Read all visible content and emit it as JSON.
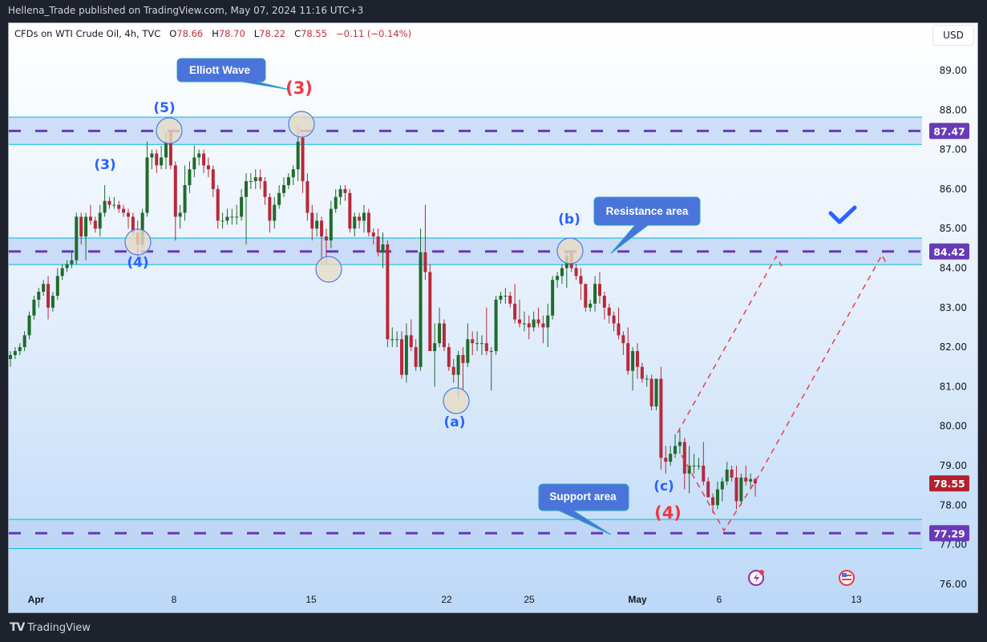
{
  "header": {
    "published": "Hellena_Trade published on TradingView.com, May 07, 2024 11:16 UTC+3"
  },
  "legend": {
    "symbol": "CFDs on WTI Crude Oil, 4h, TVC",
    "open_label": "O",
    "open": "78.66",
    "high_label": "H",
    "high": "78.70",
    "low_label": "L",
    "low": "78.22",
    "close_label": "C",
    "close": "78.55",
    "change": "−0.11 (−0.14%)"
  },
  "currency_button": "USD",
  "footer": {
    "logo_text": "TradingView"
  },
  "colors": {
    "up": "#1f6b2b",
    "down": "#b8283a",
    "level": "#673ab7",
    "last_price": "#b2222e",
    "zone_fill": "#bcd3f7",
    "zone_border": "#00bcd4",
    "projection": "#e8404f",
    "wave_blue": "#2962ff",
    "wave_red": "#f23645",
    "callout": "#4a74d9"
  },
  "chart_data": {
    "type": "candlestick",
    "interval": "4h",
    "ylim": [
      75.8,
      89.6
    ],
    "price_ticks": [
      "89.00",
      "88.00",
      "87.00",
      "86.00",
      "85.00",
      "84.00",
      "83.00",
      "82.00",
      "81.00",
      "80.00",
      "79.00",
      "78.00",
      "77.00",
      "76.00"
    ],
    "time_ticks": [
      "Apr",
      "8",
      "15",
      "22",
      "25",
      "May",
      "6",
      "13"
    ],
    "levels": [
      {
        "label": "87.47",
        "price": 87.47,
        "zone": [
          87.13,
          87.82
        ]
      },
      {
        "label": "84.42",
        "price": 84.42,
        "zone": [
          84.09,
          84.76
        ]
      },
      {
        "label": "77.29",
        "price": 77.29,
        "zone": [
          76.9,
          77.64
        ]
      }
    ],
    "last_price": {
      "label": "78.55",
      "price": 78.55
    },
    "wave_labels": [
      {
        "text": "(5)",
        "color": "blue"
      },
      {
        "text": "(3)",
        "color": "blue"
      },
      {
        "text": "(4)",
        "color": "blue"
      },
      {
        "text": "(3)",
        "color": "red"
      },
      {
        "text": "(a)",
        "color": "blue"
      },
      {
        "text": "(b)",
        "color": "blue"
      },
      {
        "text": "(c)",
        "color": "blue"
      },
      {
        "text": "(4)",
        "color": "red"
      }
    ],
    "callouts": [
      "Elliott Wave",
      "Resistance area",
      "Support area"
    ],
    "candles": [
      [
        81.7,
        81.9,
        81.5,
        81.8
      ],
      [
        81.8,
        82.0,
        81.7,
        81.9
      ],
      [
        81.9,
        82.1,
        81.8,
        82.0
      ],
      [
        82.0,
        82.4,
        81.9,
        82.3
      ],
      [
        82.3,
        82.9,
        82.2,
        82.8
      ],
      [
        82.8,
        83.3,
        82.7,
        83.2
      ],
      [
        83.2,
        83.5,
        83.0,
        83.4
      ],
      [
        83.4,
        83.7,
        83.3,
        83.6
      ],
      [
        83.6,
        83.8,
        82.7,
        83.0
      ],
      [
        83.0,
        83.4,
        82.9,
        83.3
      ],
      [
        83.3,
        84.0,
        83.2,
        83.8
      ],
      [
        83.8,
        84.1,
        83.7,
        84.0
      ],
      [
        84.0,
        84.2,
        83.9,
        84.1
      ],
      [
        84.1,
        84.4,
        84.0,
        84.2
      ],
      [
        84.2,
        85.4,
        84.1,
        85.3
      ],
      [
        85.3,
        85.4,
        84.6,
        84.8
      ],
      [
        84.8,
        85.4,
        84.2,
        85.3
      ],
      [
        85.3,
        85.6,
        85.1,
        85.2
      ],
      [
        85.2,
        85.3,
        84.9,
        85.0
      ],
      [
        85.0,
        85.6,
        84.8,
        85.4
      ],
      [
        85.4,
        86.1,
        85.3,
        85.7
      ],
      [
        85.7,
        85.8,
        85.5,
        85.6
      ],
      [
        85.6,
        85.8,
        85.5,
        85.6
      ],
      [
        85.6,
        85.7,
        85.4,
        85.5
      ],
      [
        85.5,
        85.6,
        85.3,
        85.4
      ],
      [
        85.4,
        85.5,
        85.0,
        85.3
      ],
      [
        85.3,
        85.4,
        84.8,
        84.9
      ],
      [
        84.9,
        85.2,
        84.3,
        84.6
      ],
      [
        84.6,
        85.5,
        84.5,
        85.4
      ],
      [
        85.4,
        87.2,
        85.3,
        86.8
      ],
      [
        86.8,
        87.0,
        86.5,
        86.9
      ],
      [
        86.9,
        87.0,
        86.4,
        86.6
      ],
      [
        86.6,
        87.1,
        86.5,
        86.8
      ],
      [
        86.8,
        87.45,
        86.5,
        87.2
      ],
      [
        87.45,
        87.47,
        86.5,
        86.6
      ],
      [
        86.6,
        86.7,
        84.7,
        85.3
      ],
      [
        85.3,
        85.6,
        85.0,
        85.4
      ],
      [
        85.4,
        86.6,
        85.2,
        86.1
      ],
      [
        86.1,
        86.7,
        85.9,
        86.5
      ],
      [
        86.5,
        87.1,
        86.3,
        86.8
      ],
      [
        86.8,
        87.0,
        86.6,
        86.9
      ],
      [
        86.9,
        87.0,
        86.4,
        86.6
      ],
      [
        86.6,
        86.8,
        86.3,
        86.5
      ],
      [
        86.5,
        86.6,
        85.8,
        86.0
      ],
      [
        86.0,
        86.1,
        85.0,
        85.2
      ],
      [
        85.2,
        85.4,
        85.0,
        85.2
      ],
      [
        85.2,
        85.5,
        85.1,
        85.3
      ],
      [
        85.3,
        85.5,
        85.1,
        85.3
      ],
      [
        85.3,
        85.6,
        85.1,
        85.3
      ],
      [
        85.3,
        86.0,
        85.2,
        85.8
      ],
      [
        85.8,
        86.4,
        84.6,
        86.2
      ],
      [
        86.2,
        86.4,
        86.0,
        86.2
      ],
      [
        86.2,
        86.5,
        86.0,
        86.3
      ],
      [
        86.3,
        86.5,
        86.0,
        86.2
      ],
      [
        86.2,
        86.3,
        85.6,
        85.8
      ],
      [
        85.8,
        85.9,
        84.9,
        85.2
      ],
      [
        85.2,
        85.8,
        85.0,
        85.6
      ],
      [
        85.6,
        86.1,
        85.5,
        85.9
      ],
      [
        85.9,
        86.3,
        85.8,
        86.1
      ],
      [
        86.1,
        86.4,
        86.0,
        86.3
      ],
      [
        86.3,
        86.6,
        86.1,
        86.5
      ],
      [
        86.5,
        87.6,
        86.2,
        87.2
      ],
      [
        87.3,
        87.4,
        85.9,
        86.2
      ],
      [
        86.2,
        86.4,
        85.2,
        85.4
      ],
      [
        85.4,
        85.6,
        84.7,
        85.0
      ],
      [
        85.0,
        85.4,
        84.8,
        85.2
      ],
      [
        85.2,
        85.3,
        84.1,
        84.8
      ],
      [
        84.8,
        85.0,
        84.1,
        84.7
      ],
      [
        84.7,
        85.7,
        84.5,
        85.5
      ],
      [
        85.5,
        86.0,
        85.4,
        85.8
      ],
      [
        85.8,
        86.1,
        85.6,
        86.0
      ],
      [
        86.0,
        86.1,
        85.7,
        85.9
      ],
      [
        85.9,
        86.0,
        84.9,
        85.0
      ],
      [
        85.0,
        85.4,
        84.8,
        85.3
      ],
      [
        85.3,
        85.4,
        85.0,
        85.2
      ],
      [
        85.2,
        85.6,
        84.9,
        85.4
      ],
      [
        85.4,
        85.5,
        84.8,
        84.9
      ],
      [
        84.9,
        85.0,
        84.6,
        84.8
      ],
      [
        84.8,
        85.0,
        84.3,
        84.4
      ],
      [
        84.4,
        84.9,
        84.0,
        84.6
      ],
      [
        84.6,
        84.7,
        82.0,
        82.2
      ],
      [
        82.2,
        82.5,
        82.0,
        82.2
      ],
      [
        82.2,
        82.4,
        82.0,
        82.2
      ],
      [
        82.2,
        82.4,
        81.2,
        81.3
      ],
      [
        81.3,
        82.6,
        81.1,
        82.3
      ],
      [
        82.3,
        82.7,
        81.9,
        82.0
      ],
      [
        82.0,
        82.2,
        81.4,
        81.5
      ],
      [
        81.5,
        85.0,
        81.4,
        84.4
      ],
      [
        84.4,
        85.6,
        83.7,
        83.9
      ],
      [
        83.9,
        84.1,
        81.9,
        81.9
      ],
      [
        81.9,
        82.6,
        81.0,
        82.1
      ],
      [
        82.1,
        83.0,
        82.0,
        82.6
      ],
      [
        82.6,
        82.7,
        81.9,
        82.0
      ],
      [
        82.0,
        82.1,
        81.4,
        81.5
      ],
      [
        81.5,
        81.7,
        81.1,
        81.3
      ],
      [
        81.3,
        81.9,
        80.7,
        81.8
      ],
      [
        81.8,
        82.0,
        80.9,
        81.6
      ],
      [
        81.6,
        82.6,
        81.5,
        82.2
      ],
      [
        82.2,
        82.4,
        81.8,
        82.1
      ],
      [
        82.1,
        82.4,
        81.9,
        82.1
      ],
      [
        82.1,
        82.3,
        81.8,
        82.1
      ],
      [
        82.1,
        83.0,
        81.8,
        81.9
      ],
      [
        81.9,
        82.0,
        80.9,
        81.9
      ],
      [
        81.9,
        83.3,
        81.8,
        83.2
      ],
      [
        83.2,
        83.4,
        83.1,
        83.3
      ],
      [
        83.3,
        83.5,
        83.1,
        83.3
      ],
      [
        83.3,
        83.4,
        83.0,
        83.1
      ],
      [
        83.1,
        83.6,
        82.6,
        82.7
      ],
      [
        82.7,
        83.2,
        82.5,
        82.6
      ],
      [
        82.6,
        82.9,
        82.4,
        82.6
      ],
      [
        82.6,
        82.8,
        82.2,
        82.5
      ],
      [
        82.5,
        82.9,
        82.4,
        82.7
      ],
      [
        82.7,
        83.0,
        82.5,
        82.6
      ],
      [
        82.6,
        82.8,
        82.1,
        82.5
      ],
      [
        82.5,
        83.1,
        82.0,
        82.8
      ],
      [
        82.8,
        83.8,
        82.7,
        83.7
      ],
      [
        83.7,
        83.9,
        83.5,
        83.8
      ],
      [
        83.8,
        84.1,
        83.6,
        84.0
      ],
      [
        84.0,
        84.4,
        83.5,
        84.3
      ],
      [
        84.4,
        84.42,
        83.9,
        84.0
      ],
      [
        84.0,
        84.1,
        83.7,
        83.8
      ],
      [
        83.8,
        84.0,
        83.2,
        83.6
      ],
      [
        83.6,
        83.6,
        82.9,
        83.0
      ],
      [
        83.0,
        83.2,
        82.9,
        83.1
      ],
      [
        83.1,
        83.8,
        82.9,
        83.6
      ],
      [
        83.6,
        83.9,
        83.1,
        83.3
      ],
      [
        83.3,
        83.4,
        82.7,
        83.0
      ],
      [
        83.0,
        83.1,
        82.6,
        82.8
      ],
      [
        82.8,
        82.9,
        82.4,
        82.6
      ],
      [
        82.6,
        83.0,
        82.2,
        82.3
      ],
      [
        82.3,
        82.4,
        81.8,
        82.1
      ],
      [
        82.1,
        82.5,
        81.3,
        81.4
      ],
      [
        81.4,
        82.0,
        80.9,
        81.9
      ],
      [
        81.9,
        82.1,
        81.2,
        81.5
      ],
      [
        81.5,
        81.6,
        81.1,
        81.2
      ],
      [
        81.2,
        81.3,
        81.0,
        81.2
      ],
      [
        81.2,
        81.3,
        80.4,
        80.5
      ],
      [
        80.5,
        81.2,
        80.4,
        81.2
      ],
      [
        81.2,
        81.5,
        78.9,
        79.2
      ],
      [
        79.2,
        79.5,
        78.8,
        79.1
      ],
      [
        79.1,
        79.5,
        79.0,
        79.3
      ],
      [
        79.3,
        79.8,
        79.2,
        79.5
      ],
      [
        79.5,
        79.9,
        79.3,
        79.6
      ],
      [
        79.6,
        79.7,
        78.4,
        78.8
      ],
      [
        78.8,
        79.5,
        78.3,
        79.0
      ],
      [
        79.0,
        79.3,
        78.8,
        79.0
      ],
      [
        79.0,
        79.2,
        78.9,
        79.0
      ],
      [
        79.0,
        79.6,
        78.5,
        78.6
      ],
      [
        78.6,
        78.7,
        78.2,
        78.2
      ],
      [
        78.2,
        78.3,
        77.8,
        78.0
      ],
      [
        78.0,
        78.6,
        77.9,
        78.4
      ],
      [
        78.4,
        78.7,
        78.1,
        78.6
      ],
      [
        78.6,
        79.1,
        78.5,
        78.9
      ],
      [
        78.9,
        79.0,
        78.6,
        78.7
      ],
      [
        78.7,
        79.0,
        77.9,
        78.1
      ],
      [
        78.1,
        78.8,
        78.0,
        78.7
      ],
      [
        78.7,
        79.0,
        78.5,
        78.6
      ],
      [
        78.6,
        78.8,
        78.4,
        78.66
      ],
      [
        78.66,
        78.7,
        78.22,
        78.55
      ]
    ]
  }
}
